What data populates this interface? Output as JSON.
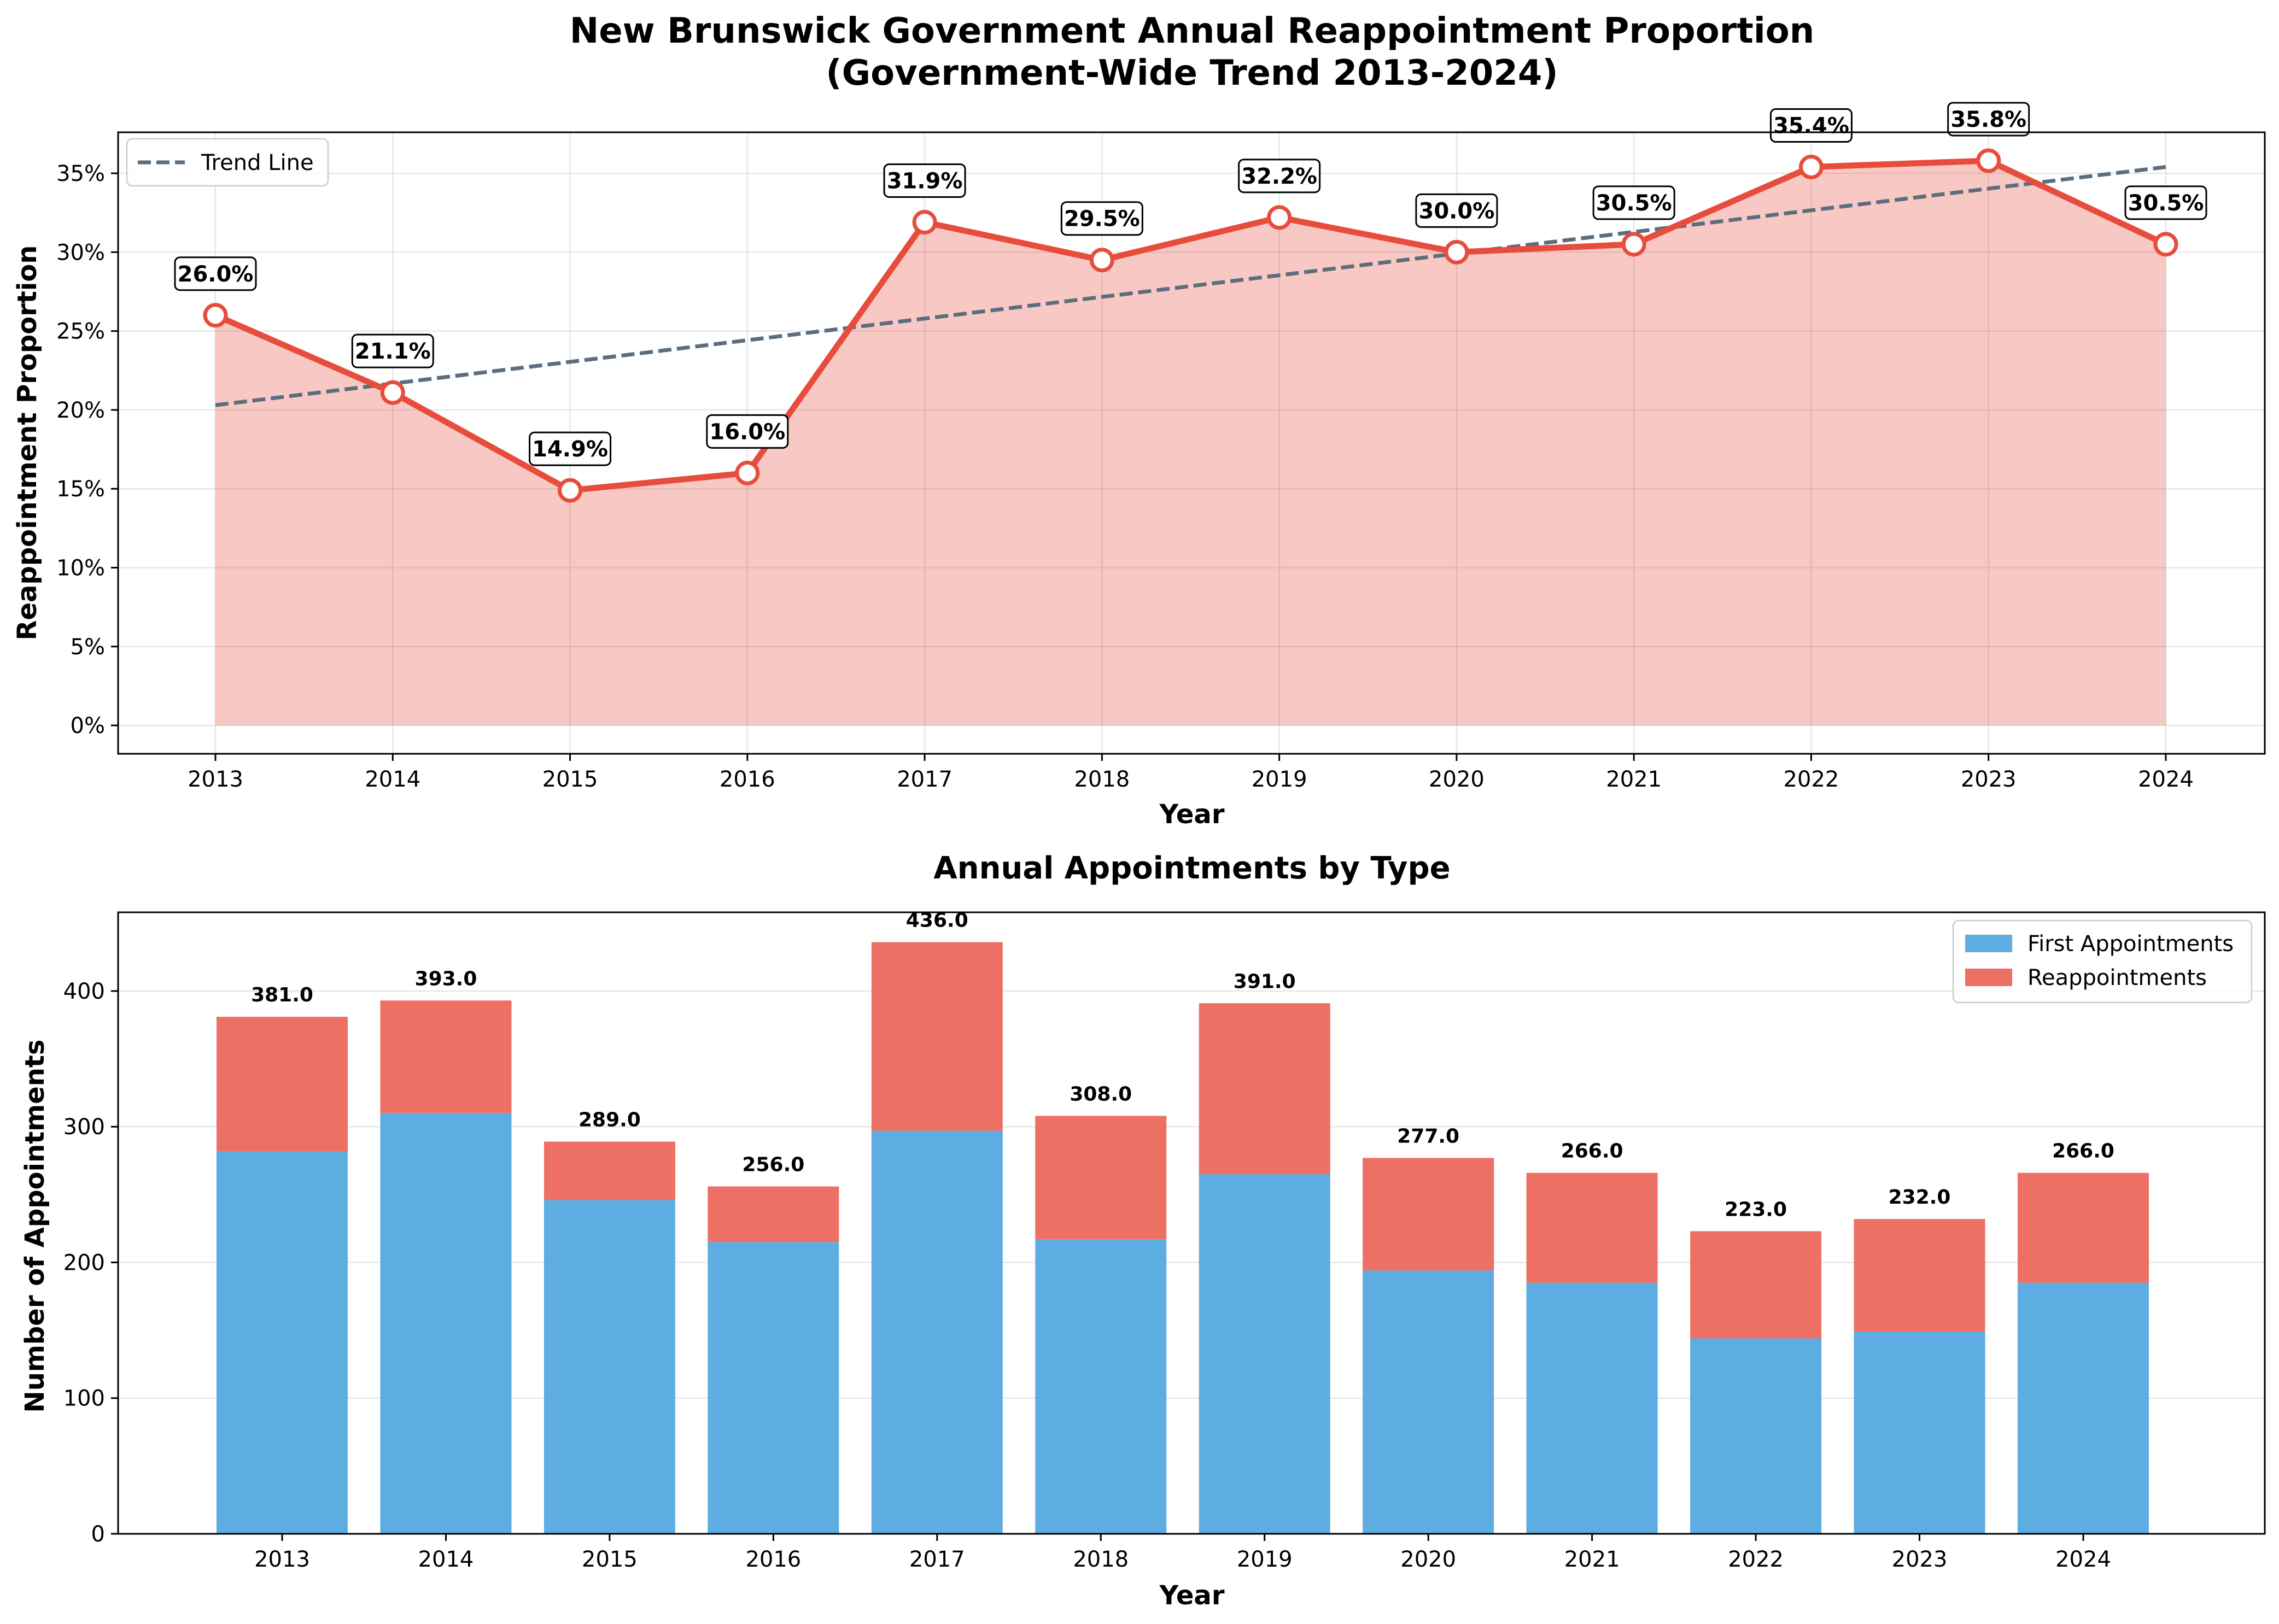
{
  "chart_data": [
    {
      "type": "line",
      "title": "New Brunswick Government Annual Reappointment Proportion",
      "subtitle": "(Government-Wide Trend 2013-2024)",
      "xlabel": "Year",
      "ylabel": "Reappointment Proportion",
      "x": [
        "2013",
        "2014",
        "2015",
        "2016",
        "2017",
        "2018",
        "2019",
        "2020",
        "2021",
        "2022",
        "2023",
        "2024"
      ],
      "series": [
        {
          "values": [
            26.0,
            21.1,
            14.9,
            16.0,
            31.9,
            29.5,
            32.2,
            30.0,
            30.5,
            35.4,
            35.8,
            30.5
          ],
          "color": "#e74c3c"
        }
      ],
      "data_labels": [
        "26.0%",
        "21.1%",
        "14.9%",
        "16.0%",
        "31.9%",
        "29.5%",
        "32.2%",
        "30.0%",
        "30.5%",
        "35.4%",
        "35.8%",
        "30.5%"
      ],
      "trend": {
        "name": "Trend Line",
        "start": 20.3,
        "end": 35.4,
        "color": "#5d6d7e"
      },
      "yticks": [
        0,
        5,
        10,
        15,
        20,
        25,
        30,
        35
      ],
      "ytick_labels": [
        "0%",
        "5%",
        "10%",
        "15%",
        "20%",
        "25%",
        "30%",
        "35%"
      ],
      "ylim": [
        -1.8,
        37.6
      ],
      "grid": true,
      "legend_position": "upper-left"
    },
    {
      "type": "bar",
      "stacked": true,
      "title": "Annual Appointments by Type",
      "xlabel": "Year",
      "ylabel": "Number of Appointments",
      "categories": [
        "2013",
        "2014",
        "2015",
        "2016",
        "2017",
        "2018",
        "2019",
        "2020",
        "2021",
        "2022",
        "2023",
        "2024"
      ],
      "series": [
        {
          "name": "First Appointments",
          "values": [
            282,
            310,
            246,
            215,
            297,
            217,
            265,
            194,
            185,
            144,
            149,
            185
          ],
          "color": "#5dade2"
        },
        {
          "name": "Reappointments",
          "values": [
            99,
            83,
            43,
            41,
            139,
            91,
            126,
            83,
            81,
            79,
            83,
            81
          ],
          "color": "#ec7063"
        }
      ],
      "totals": [
        381,
        393,
        289,
        256,
        436,
        308,
        391,
        277,
        266,
        223,
        232,
        266
      ],
      "total_labels": [
        "381.0",
        "393.0",
        "289.0",
        "256.0",
        "436.0",
        "308.0",
        "391.0",
        "277.0",
        "266.0",
        "223.0",
        "232.0",
        "266.0"
      ],
      "yticks": [
        0,
        100,
        200,
        300,
        400
      ],
      "ytick_labels": [
        "0",
        "100",
        "200",
        "300",
        "400"
      ],
      "ylim": [
        0,
        458
      ],
      "grid": true,
      "legend_position": "upper-right"
    }
  ]
}
